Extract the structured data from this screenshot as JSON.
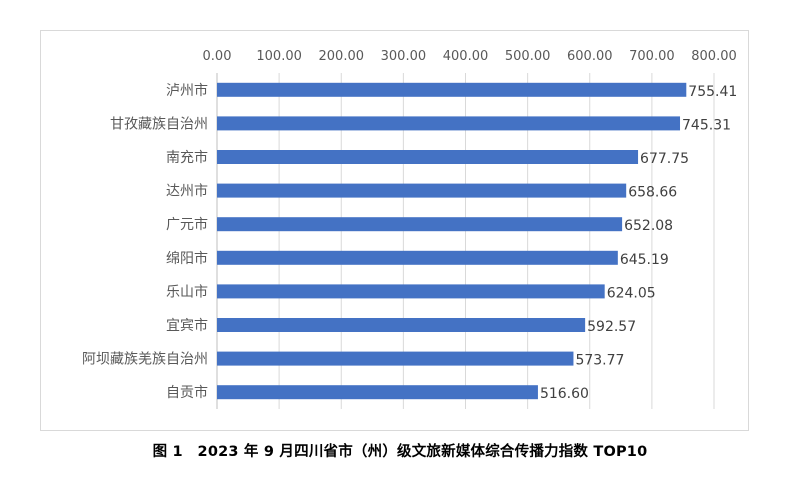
{
  "chart_data": {
    "type": "bar",
    "orientation": "horizontal",
    "title": "",
    "caption": "图 1　2023 年 9 月四川省市（州）级文旅新媒体综合传播力指数 TOP10",
    "xlabel": "",
    "ylabel": "",
    "xlim": [
      0,
      800
    ],
    "x_ticks": [
      "0.00",
      "100.00",
      "200.00",
      "300.00",
      "400.00",
      "500.00",
      "600.00",
      "700.00",
      "800.00"
    ],
    "x_axis_position": "top",
    "grid": true,
    "bar_color": "#4472C4",
    "categories": [
      "泸州市",
      "甘孜藏族自治州",
      "南充市",
      "达州市",
      "广元市",
      "绵阳市",
      "乐山市",
      "宜宾市",
      "阿坝藏族羌族自治州",
      "自贡市"
    ],
    "values": [
      755.41,
      745.31,
      677.75,
      658.66,
      652.08,
      645.19,
      624.05,
      592.57,
      573.77,
      516.6
    ],
    "value_labels": [
      "755.41",
      "745.31",
      "677.75",
      "658.66",
      "652.08",
      "645.19",
      "624.05",
      "592.57",
      "573.77",
      "516.60"
    ]
  }
}
